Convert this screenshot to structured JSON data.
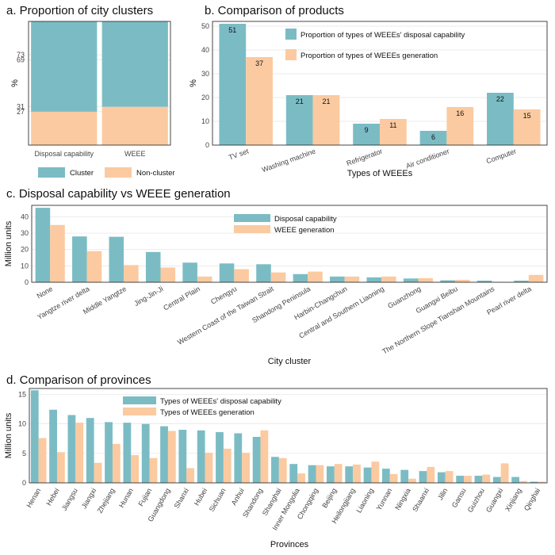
{
  "colors": {
    "teal": "#7bbcc4",
    "peach": "#fbcaa0"
  },
  "chart_data": [
    {
      "id": "a",
      "type": "bar",
      "stacked": true,
      "title": "a. Proportion of city clusters",
      "ylabel": "%",
      "categories": [
        "Disposal capability",
        "WEEE"
      ],
      "ytick_labels": [
        "27",
        "31",
        "69",
        "73"
      ],
      "ylim": [
        0,
        100
      ],
      "series": [
        {
          "name": "Non-cluster",
          "values": [
            27,
            31
          ]
        },
        {
          "name": "Cluster",
          "values": [
            73,
            69
          ]
        }
      ],
      "legend_position": "bottom"
    },
    {
      "id": "b",
      "type": "bar",
      "title": "b. Comparison of products",
      "xlabel": "Types of WEEEs",
      "ylabel": "%",
      "categories": [
        "TV set",
        "Washing machine",
        "Refrigerator",
        "Air conditioner",
        "Computer"
      ],
      "ylim": [
        0,
        52
      ],
      "yticks": [
        0,
        10,
        20,
        30,
        40,
        50
      ],
      "series": [
        {
          "name": "Proportion of types of WEEEs' disposal capability",
          "values": [
            51,
            21,
            9,
            6,
            22
          ]
        },
        {
          "name": "Proportion of types of WEEEs generation",
          "values": [
            37,
            21,
            11,
            16,
            15
          ]
        }
      ],
      "legend_position": "top-right"
    },
    {
      "id": "c",
      "type": "bar",
      "title": "c. Disposal capability vs WEEE generation",
      "xlabel": "City cluster",
      "ylabel": "Million units",
      "categories": [
        "None",
        "Yangtze river delta",
        "Middle Yangtze",
        "Jing-Jin-Ji",
        "Central Plain",
        "Chengyu",
        "Western Coast of the Taiwan Strait",
        "Shandong Peninsula",
        "Harbin-Changchun",
        "Central and Southern Liaoning",
        "Guanzhong",
        "Guangxi Beibu",
        "The Northern Slope Tianshan Mountains",
        "Pearl river delta"
      ],
      "ylim": [
        0,
        47
      ],
      "yticks": [
        0,
        10,
        20,
        30,
        40
      ],
      "series": [
        {
          "name": "Disposal capability",
          "values": [
            45.5,
            28,
            27.8,
            18.5,
            12,
            11.5,
            11,
            5,
            3.5,
            3,
            2.3,
            1.2,
            1,
            1
          ]
        },
        {
          "name": "WEEE generation",
          "values": [
            35,
            19,
            10.5,
            9,
            3.5,
            8,
            6,
            6.5,
            3.5,
            3.5,
            2.5,
            1.5,
            0.2,
            4.5
          ]
        }
      ],
      "legend_position": "top-center"
    },
    {
      "id": "d",
      "type": "bar",
      "title": "d. Comparison of provinces",
      "xlabel": "Provinces",
      "ylabel": "Million units",
      "categories": [
        "Henan",
        "Hebei",
        "Jiangsu",
        "Jiangxi",
        "Zhejiang",
        "Hunan",
        "Fujian",
        "Guangdong",
        "Shanxi",
        "Hubei",
        "Sichuan",
        "Anhui",
        "Shandong",
        "Shanghai",
        "Inner Mongolia",
        "Chongqing",
        "Beijing",
        "Heilongjiang",
        "Liaoning",
        "Yunnan",
        "Ningxia",
        "Shaanxi",
        "Jilin",
        "Gansu",
        "Guizhou",
        "Guangxi",
        "Xinjiang",
        "Qinghai"
      ],
      "ylim": [
        0,
        16
      ],
      "yticks": [
        0,
        5,
        10,
        15
      ],
      "series": [
        {
          "name": "Types of WEEEs' disposal capability",
          "values": [
            15.7,
            12.4,
            11.5,
            11,
            10.3,
            10.2,
            10,
            9.6,
            9,
            8.9,
            8.6,
            8.4,
            7.8,
            4.4,
            3.2,
            3,
            2.8,
            2.8,
            2.6,
            2.4,
            2.2,
            2,
            1.8,
            1.2,
            1.2,
            1,
            1,
            0.2
          ]
        },
        {
          "name": "Types of WEEEs generation",
          "values": [
            7.6,
            5.2,
            10.2,
            3.4,
            6.6,
            4.7,
            4.2,
            8.8,
            2.5,
            5.1,
            5.8,
            5.1,
            8.9,
            4.2,
            1.6,
            3,
            3.2,
            3.1,
            3.6,
            1.5,
            0.7,
            2.7,
            2,
            1.2,
            1.4,
            3.3,
            0.3,
            0.2
          ]
        }
      ],
      "legend_position": "top-left"
    }
  ]
}
